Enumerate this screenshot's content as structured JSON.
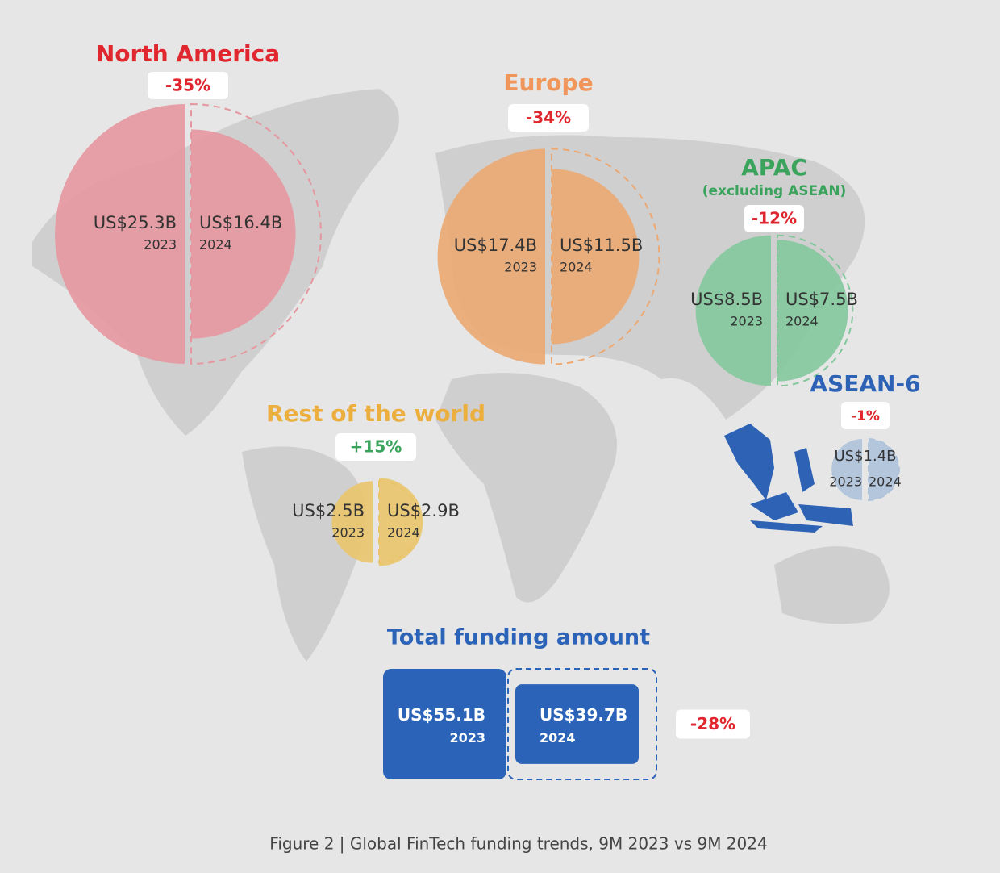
{
  "regions": [
    {
      "name": "North America",
      "color": "#e0262e",
      "fill": "#e5979f",
      "change": "-35%",
      "change_color": "#e0262e",
      "amounts": [
        {
          "value": 25.3,
          "label": "US$25.3B",
          "year": "2023"
        },
        {
          "value": 16.4,
          "label": "US$16.4B",
          "year": "2024"
        }
      ]
    },
    {
      "name": "Europe",
      "color": "#f0965a",
      "fill": "#eba872",
      "change": "-34%",
      "change_color": "#e0262e",
      "amounts": [
        {
          "value": 17.4,
          "label": "US$17.4B",
          "year": "2023"
        },
        {
          "value": 11.5,
          "label": "US$11.5B",
          "year": "2024"
        }
      ]
    },
    {
      "name": "APAC",
      "subtitle": "(excluding ASEAN)",
      "color": "#3aa35c",
      "fill": "#82c89c",
      "change": "-12%",
      "change_color": "#e0262e",
      "amounts": [
        {
          "value": 8.5,
          "label": "US$8.5B",
          "year": "2023"
        },
        {
          "value": 7.5,
          "label": "US$7.5B",
          "year": "2024"
        }
      ]
    },
    {
      "name": "ASEAN-6",
      "color": "#2e62b5",
      "fill": "#aec2da",
      "change": "-1%",
      "change_color": "#e0262e",
      "amounts": [
        {
          "value": 1.4,
          "label": "US$1.4B",
          "year": "2023"
        },
        {
          "value": 1.4,
          "year": "2024"
        }
      ]
    },
    {
      "name": "Rest of the world",
      "color": "#ecae3c",
      "fill": "#e9c46c",
      "change": "+15%",
      "change_color": "#3aa35c",
      "amounts": [
        {
          "value": 2.5,
          "label": "US$2.5B",
          "year": "2023"
        },
        {
          "value": 2.9,
          "label": "US$2.9B",
          "year": "2024"
        }
      ]
    }
  ],
  "total": {
    "title": "Total funding amount",
    "color": "#2b63b8",
    "change": "-28%",
    "change_color": "#e0262e",
    "amounts": [
      {
        "value": 55.1,
        "label": "US$55.1B",
        "year": "2023"
      },
      {
        "value": 39.7,
        "label": "US$39.7B",
        "year": "2024"
      }
    ]
  },
  "caption": "Figure 2 | Global FinTech funding trends, 9M 2023 vs 9M 2024"
}
